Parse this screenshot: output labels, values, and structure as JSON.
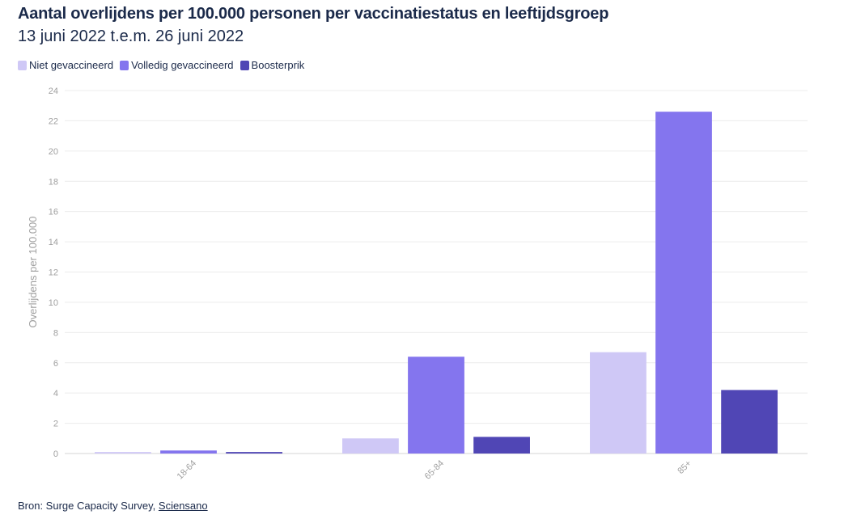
{
  "chart_data": {
    "type": "bar",
    "title": "Aantal overlijdens per 100.000 personen per vaccinatiestatus en leeftijdsgroep",
    "subtitle": "13 juni 2022 t.e.m. 26 juni 2022",
    "categories": [
      "18-64",
      "65-84",
      "85+"
    ],
    "series": [
      {
        "name": "Niet gevaccineerd",
        "color": "#cfc8f6",
        "values": [
          0.1,
          1.0,
          6.7
        ]
      },
      {
        "name": "Volledig gevaccineerd",
        "color": "#8475ee",
        "values": [
          0.2,
          6.4,
          22.6
        ]
      },
      {
        "name": "Boosterprik",
        "color": "#5046b5",
        "values": [
          0.1,
          1.1,
          4.2
        ]
      }
    ],
    "ylabel": "Overlijdens per 100.000",
    "xlabel": "",
    "ylim": [
      0,
      24
    ],
    "yticks": [
      0,
      2,
      4,
      6,
      8,
      10,
      12,
      14,
      16,
      18,
      20,
      22,
      24
    ],
    "grid": true,
    "legend": "top-left"
  },
  "footer": {
    "source_prefix": "Bron: Surge Capacity Survey, ",
    "source_link": "Sciensano"
  }
}
